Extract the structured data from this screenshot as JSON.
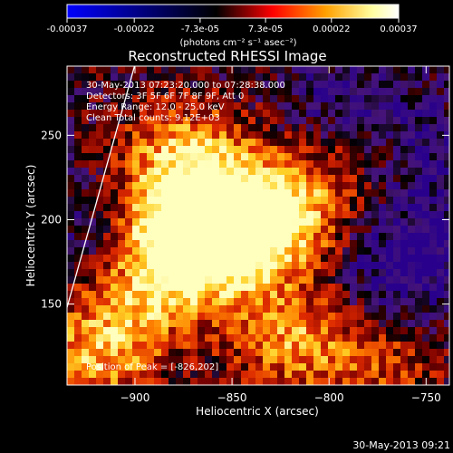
{
  "colorbar": {
    "tick_labels": [
      "-0.00037",
      "-0.00022",
      "-7.3e-05",
      "7.3e-05",
      "0.00022",
      "0.00037"
    ],
    "tick_values": [
      -0.00037,
      -0.00022,
      -7.3e-05,
      7.3e-05,
      0.00022,
      0.00037
    ],
    "range": [
      -0.00037,
      0.00037
    ],
    "unit_label": "(photons cm⁻² s⁻¹ asec⁻²)",
    "colors": [
      "#0000ff",
      "#000000",
      "#ff0000",
      "#ffa000",
      "#ffffa0",
      "#ffffff"
    ]
  },
  "chart_data": {
    "type": "heatmap",
    "title": "Reconstructed RHESSI Image",
    "xlabel": "Heliocentric X (arcsec)",
    "ylabel": "Heliocentric Y (arcsec)",
    "xlim": [
      -935,
      -738
    ],
    "ylim": [
      102,
      291
    ],
    "x_ticks": [
      -900,
      -850,
      -800,
      -750
    ],
    "y_ticks": [
      150,
      200,
      250
    ],
    "x_tick_labels": [
      "−900",
      "−850",
      "−800",
      "−750"
    ],
    "y_tick_labels": [
      "150",
      "200",
      "250"
    ],
    "annotations": [
      "30-May-2013 07:23:20.000 to 07:28:38.000",
      "Detectors: 3F 5F 6F 7F 8F 9F, Att 0",
      "Energy Range: 12.0 - 25.0 keV",
      "Clean     Total counts: 9.12E+03"
    ],
    "peak_label": "Position of Peak = [-826,202]",
    "peak_position": [
      -826,
      202
    ],
    "limb_points": [
      [
        -935,
        148
      ],
      [
        -900,
        292
      ]
    ],
    "intensity_sources": [
      {
        "x": -826,
        "y": 202,
        "amp": 1.0
      },
      {
        "x": -868,
        "y": 187,
        "amp": 0.85
      },
      {
        "x": -880,
        "y": 178,
        "amp": 0.7
      },
      {
        "x": -850,
        "y": 195,
        "amp": 0.7
      },
      {
        "x": -895,
        "y": 210,
        "amp": 0.55
      },
      {
        "x": -880,
        "y": 240,
        "amp": 0.5
      },
      {
        "x": -860,
        "y": 232,
        "amp": 0.5
      },
      {
        "x": -830,
        "y": 140,
        "amp": 0.5
      },
      {
        "x": -810,
        "y": 120,
        "amp": 0.45
      },
      {
        "x": -920,
        "y": 120,
        "amp": 0.75
      },
      {
        "x": -900,
        "y": 150,
        "amp": 0.5
      },
      {
        "x": -790,
        "y": 235,
        "amp": 0.4
      },
      {
        "x": -770,
        "y": 115,
        "amp": 0.4
      }
    ],
    "negative_regions": [
      {
        "x": -760,
        "y": 170,
        "amp": 0.6
      },
      {
        "x": -915,
        "y": 200,
        "amp": 0.5
      },
      {
        "x": -790,
        "y": 265,
        "amp": 0.45
      },
      {
        "x": -745,
        "y": 230,
        "amp": 0.4
      }
    ]
  },
  "footer": {
    "timestamp": "30-May-2013 09:21"
  }
}
